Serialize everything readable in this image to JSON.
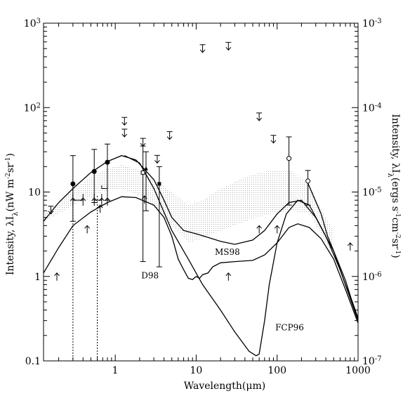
{
  "chart_data": {
    "type": "line",
    "xlabel": "Wavelength(μm)",
    "ylabel_left": "Intensity, λI",
    "ylabel_left_sub": "λ",
    "ylabel_left_units": "(nW m",
    "ylabel_left_exp1": "-2",
    "ylabel_left_mid": "sr",
    "ylabel_left_exp2": "-1",
    "ylabel_left_end": ")",
    "ylabel_right": "Intensity, λI",
    "ylabel_right_sub": "λ",
    "ylabel_right_units": "(ergs s",
    "ylabel_right_exp1": "-1",
    "ylabel_right_mid1": "cm",
    "ylabel_right_exp2": "-2",
    "ylabel_right_mid2": "sr",
    "ylabel_right_exp3": "-1",
    "ylabel_right_end": ")",
    "x_scale": "log",
    "y_scale": "log",
    "xlim": [
      0.13,
      1000
    ],
    "ylim": [
      0.1,
      1000
    ],
    "x_ticks": [
      {
        "value": 1,
        "label": "1"
      },
      {
        "value": 10,
        "label": "10"
      },
      {
        "value": 100,
        "label": "100"
      },
      {
        "value": 1000,
        "label": "1000"
      }
    ],
    "y_ticks_left": [
      {
        "value": 0.1,
        "label": "0.1"
      },
      {
        "value": 1,
        "label": "1"
      },
      {
        "value": 10,
        "label": "10"
      },
      {
        "value": 100,
        "label": "10",
        "exp": "2"
      },
      {
        "value": 1000,
        "label": "10",
        "exp": "3"
      }
    ],
    "y_ticks_right": [
      {
        "value": 0.1,
        "label": "10",
        "exp": "-7"
      },
      {
        "value": 1,
        "label": "10",
        "exp": "-6"
      },
      {
        "value": 10,
        "label": "10",
        "exp": "-5"
      },
      {
        "value": 100,
        "label": "10",
        "exp": "-4"
      },
      {
        "value": 1000,
        "label": "10",
        "exp": "-3"
      }
    ],
    "band": {
      "upper": [
        [
          0.13,
          5.5
        ],
        [
          0.2,
          7.5
        ],
        [
          0.3,
          11
        ],
        [
          0.5,
          15
        ],
        [
          0.8,
          19
        ],
        [
          1.2,
          21
        ],
        [
          2,
          18
        ],
        [
          3,
          14
        ],
        [
          5,
          10
        ],
        [
          8,
          7
        ],
        [
          12,
          8
        ],
        [
          20,
          11
        ],
        [
          40,
          15
        ],
        [
          80,
          18
        ],
        [
          150,
          18
        ],
        [
          250,
          12
        ],
        [
          400,
          5
        ],
        [
          500,
          3.5
        ]
      ],
      "lower": [
        [
          0.13,
          4.5
        ],
        [
          0.2,
          5.5
        ],
        [
          0.3,
          7
        ],
        [
          0.5,
          8.5
        ],
        [
          0.8,
          10.5
        ],
        [
          1.2,
          11
        ],
        [
          2,
          9
        ],
        [
          3,
          6.5
        ],
        [
          5,
          4
        ],
        [
          8,
          2.5
        ],
        [
          12,
          2.8
        ],
        [
          20,
          3.5
        ],
        [
          40,
          4.5
        ],
        [
          80,
          5.5
        ],
        [
          150,
          6
        ],
        [
          250,
          5.5
        ],
        [
          400,
          2.5
        ],
        [
          500,
          1.8
        ]
      ]
    },
    "curves": [
      {
        "label": "D98",
        "label_pos": [
          2.1,
          0.95
        ],
        "points": [
          [
            0.13,
            1.1
          ],
          [
            0.2,
            2.2
          ],
          [
            0.3,
            4.0
          ],
          [
            0.5,
            5.8
          ],
          [
            0.8,
            7.5
          ],
          [
            1.2,
            8.8
          ],
          [
            1.8,
            8.6
          ],
          [
            3,
            7
          ],
          [
            4,
            5
          ],
          [
            5,
            3
          ],
          [
            6,
            1.6
          ],
          [
            7,
            1.2
          ],
          [
            8,
            0.95
          ],
          [
            9,
            0.92
          ],
          [
            10,
            1.0
          ],
          [
            11,
            0.95
          ],
          [
            12,
            1.05
          ],
          [
            14,
            1.1
          ],
          [
            16,
            1.3
          ],
          [
            20,
            1.45
          ],
          [
            30,
            1.5
          ],
          [
            50,
            1.55
          ],
          [
            70,
            1.8
          ],
          [
            100,
            2.5
          ],
          [
            140,
            3.8
          ],
          [
            180,
            4.2
          ],
          [
            250,
            3.8
          ],
          [
            350,
            2.8
          ],
          [
            500,
            1.6
          ],
          [
            700,
            0.7
          ],
          [
            1000,
            0.28
          ]
        ]
      },
      {
        "label": "MS98",
        "label_pos": [
          17,
          1.8
        ],
        "points": [
          [
            0.13,
            4.5
          ],
          [
            0.2,
            7.5
          ],
          [
            0.3,
            11
          ],
          [
            0.5,
            17
          ],
          [
            0.8,
            23
          ],
          [
            1.2,
            27
          ],
          [
            1.8,
            24
          ],
          [
            3,
            14
          ],
          [
            4,
            8
          ],
          [
            5,
            5
          ],
          [
            7,
            3.5
          ],
          [
            10,
            3.2
          ],
          [
            14,
            2.9
          ],
          [
            20,
            2.6
          ],
          [
            30,
            2.4
          ],
          [
            50,
            2.7
          ],
          [
            70,
            3.5
          ],
          [
            100,
            5.5
          ],
          [
            140,
            7.5
          ],
          [
            200,
            8
          ],
          [
            300,
            5
          ],
          [
            500,
            2
          ],
          [
            700,
            0.9
          ],
          [
            1000,
            0.3
          ]
        ]
      },
      {
        "label": "FCP96",
        "label_pos": [
          95,
          0.23
        ],
        "points": [
          [
            1.3,
            27
          ],
          [
            2,
            22
          ],
          [
            3,
            11
          ],
          [
            5,
            3.5
          ],
          [
            8,
            1.6
          ],
          [
            12,
            0.8
          ],
          [
            20,
            0.4
          ],
          [
            30,
            0.22
          ],
          [
            45,
            0.13
          ],
          [
            55,
            0.115
          ],
          [
            60,
            0.12
          ],
          [
            70,
            0.3
          ],
          [
            80,
            0.8
          ],
          [
            100,
            2.5
          ],
          [
            130,
            5.5
          ],
          [
            180,
            8
          ],
          [
            250,
            7
          ],
          [
            400,
            3
          ],
          [
            600,
            1.2
          ],
          [
            1000,
            0.3
          ]
        ]
      },
      {
        "label": "",
        "points": [
          [
            230,
            14
          ],
          [
            280,
            9
          ],
          [
            350,
            5.5
          ],
          [
            420,
            3
          ],
          [
            500,
            2
          ],
          [
            600,
            1.2
          ],
          [
            700,
            0.8
          ],
          [
            850,
            0.5
          ],
          [
            1000,
            0.32
          ]
        ]
      }
    ],
    "detections": [
      {
        "x": 0.3,
        "y": 12.5,
        "lo": 4.5,
        "hi": 27,
        "marker": "filled"
      },
      {
        "x": 0.55,
        "y": 17.5,
        "lo": 7.5,
        "hi": 32,
        "marker": "filled"
      },
      {
        "x": 0.8,
        "y": 22.5,
        "lo": 8,
        "hi": 37,
        "marker": "filled"
      },
      {
        "x": 2.2,
        "y": 17,
        "lo": 1.5,
        "hi": 35,
        "marker": "open-square"
      },
      {
        "x": 2.4,
        "y": 19,
        "lo": 6,
        "hi": 30,
        "marker": "filled-triangle"
      },
      {
        "x": 3.5,
        "y": 12.5,
        "lo": 1.3,
        "hi": 20,
        "marker": "filled-square"
      },
      {
        "x": 140,
        "y": 25,
        "lo": 7,
        "hi": 45,
        "marker": "open-circle"
      },
      {
        "x": 240,
        "y": 13.5,
        "lo": 7,
        "hi": 18,
        "marker": "open-circle"
      }
    ],
    "upper_limits": [
      {
        "x": 0.16,
        "y": 5.5
      },
      {
        "x": 1.3,
        "y": 45
      },
      {
        "x": 1.3,
        "y": 62
      },
      {
        "x": 2.2,
        "y": 35
      },
      {
        "x": 3.3,
        "y": 22
      },
      {
        "x": 4.7,
        "y": 42
      },
      {
        "x": 12,
        "y": 450
      },
      {
        "x": 25,
        "y": 480
      },
      {
        "x": 60,
        "y": 70
      },
      {
        "x": 90,
        "y": 38
      }
    ],
    "lower_limits": [
      {
        "x": 0.19,
        "y": 1.1
      },
      {
        "x": 0.3,
        "y": 8.5
      },
      {
        "x": 0.4,
        "y": 8.5
      },
      {
        "x": 0.55,
        "y": 8.5
      },
      {
        "x": 0.68,
        "y": 8.5
      },
      {
        "x": 0.8,
        "y": 8.5
      },
      {
        "x": 0.45,
        "y": 4
      },
      {
        "x": 0.65,
        "y": 7
      },
      {
        "x": 25,
        "y": 1.1
      },
      {
        "x": 60,
        "y": 4
      },
      {
        "x": 100,
        "y": 4
      },
      {
        "x": 2.3,
        "y": 9
      },
      {
        "x": 800,
        "y": 2.5
      }
    ],
    "brackets": [
      {
        "x_from": 0.3,
        "x_to": 0.4,
        "top": 9.5,
        "bottom": 8
      },
      {
        "x_from": 0.55,
        "x_to": 0.68,
        "top": 9.5,
        "bottom": 8
      },
      {
        "x_from": 0.68,
        "x_to": 0.8,
        "top": 12,
        "bottom": 11
      }
    ],
    "dotted_vlines": [
      {
        "x": 0.3,
        "y_top": 12.5
      },
      {
        "x": 0.6,
        "y_top": 9
      }
    ]
  }
}
